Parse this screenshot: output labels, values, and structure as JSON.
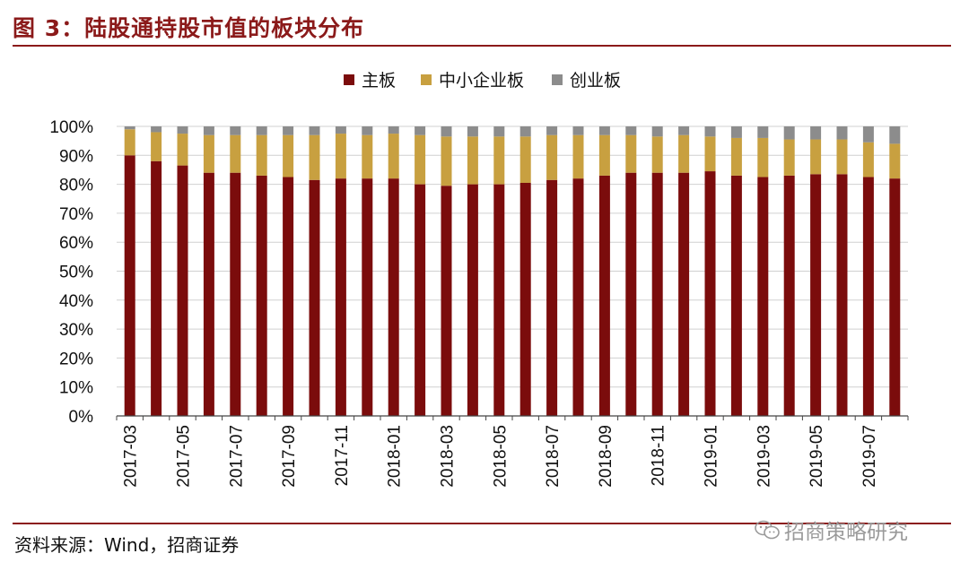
{
  "figure": {
    "title": "图 3：陆股通持股市值的板块分布",
    "source": "资料来源：Wind，招商证券",
    "watermark": "招商策略研究"
  },
  "chart_data": {
    "type": "bar",
    "stacked": true,
    "percent": true,
    "categories": [
      "2017-03",
      "2017-04",
      "2017-05",
      "2017-06",
      "2017-07",
      "2017-08",
      "2017-09",
      "2017-10",
      "2017-11",
      "2017-12",
      "2018-01",
      "2018-02",
      "2018-03",
      "2018-04",
      "2018-05",
      "2018-06",
      "2018-07",
      "2018-08",
      "2018-09",
      "2018-10",
      "2018-11",
      "2018-12",
      "2019-01",
      "2019-02",
      "2019-03",
      "2019-04",
      "2019-05",
      "2019-06",
      "2019-07",
      "2019-08"
    ],
    "tick_labels": [
      "2017-03",
      "2017-05",
      "2017-07",
      "2017-09",
      "2017-11",
      "2018-01",
      "2018-03",
      "2018-05",
      "2018-07",
      "2018-09",
      "2018-11",
      "2019-01",
      "2019-03",
      "2019-05",
      "2019-07"
    ],
    "series": [
      {
        "name": "主板",
        "color": "#7b0c0c",
        "values": [
          90,
          88,
          86.5,
          84,
          84,
          83,
          82.5,
          81.5,
          82,
          82,
          82,
          80,
          79.5,
          80,
          80,
          80.5,
          81.5,
          82,
          83,
          84,
          84,
          84,
          84.5,
          83,
          82.5,
          83,
          83.5,
          83.5,
          82.5,
          82
        ]
      },
      {
        "name": "中小企业板",
        "color": "#c8a040",
        "values": [
          9,
          10,
          11,
          13,
          13,
          14,
          14.5,
          15.5,
          15.5,
          15,
          15.5,
          17,
          17,
          16.5,
          16.5,
          16,
          15.5,
          15,
          14,
          13,
          12.5,
          13,
          12,
          13,
          13.5,
          12.5,
          12,
          12,
          12,
          12
        ]
      },
      {
        "name": "创业板",
        "color": "#8c8c8c",
        "values": [
          1,
          2,
          2.5,
          3,
          3,
          3,
          3,
          3,
          2.5,
          3,
          2.5,
          3,
          3.5,
          3.5,
          3.5,
          3.5,
          3,
          3,
          3,
          3,
          3.5,
          3,
          3.5,
          4,
          4,
          4.5,
          4.5,
          4.5,
          5.5,
          6
        ]
      }
    ],
    "y_ticks": [
      "0%",
      "10%",
      "20%",
      "30%",
      "40%",
      "50%",
      "60%",
      "70%",
      "80%",
      "90%",
      "100%"
    ],
    "ylim": [
      0,
      100
    ],
    "grid": true,
    "legend_position": "top-center"
  }
}
